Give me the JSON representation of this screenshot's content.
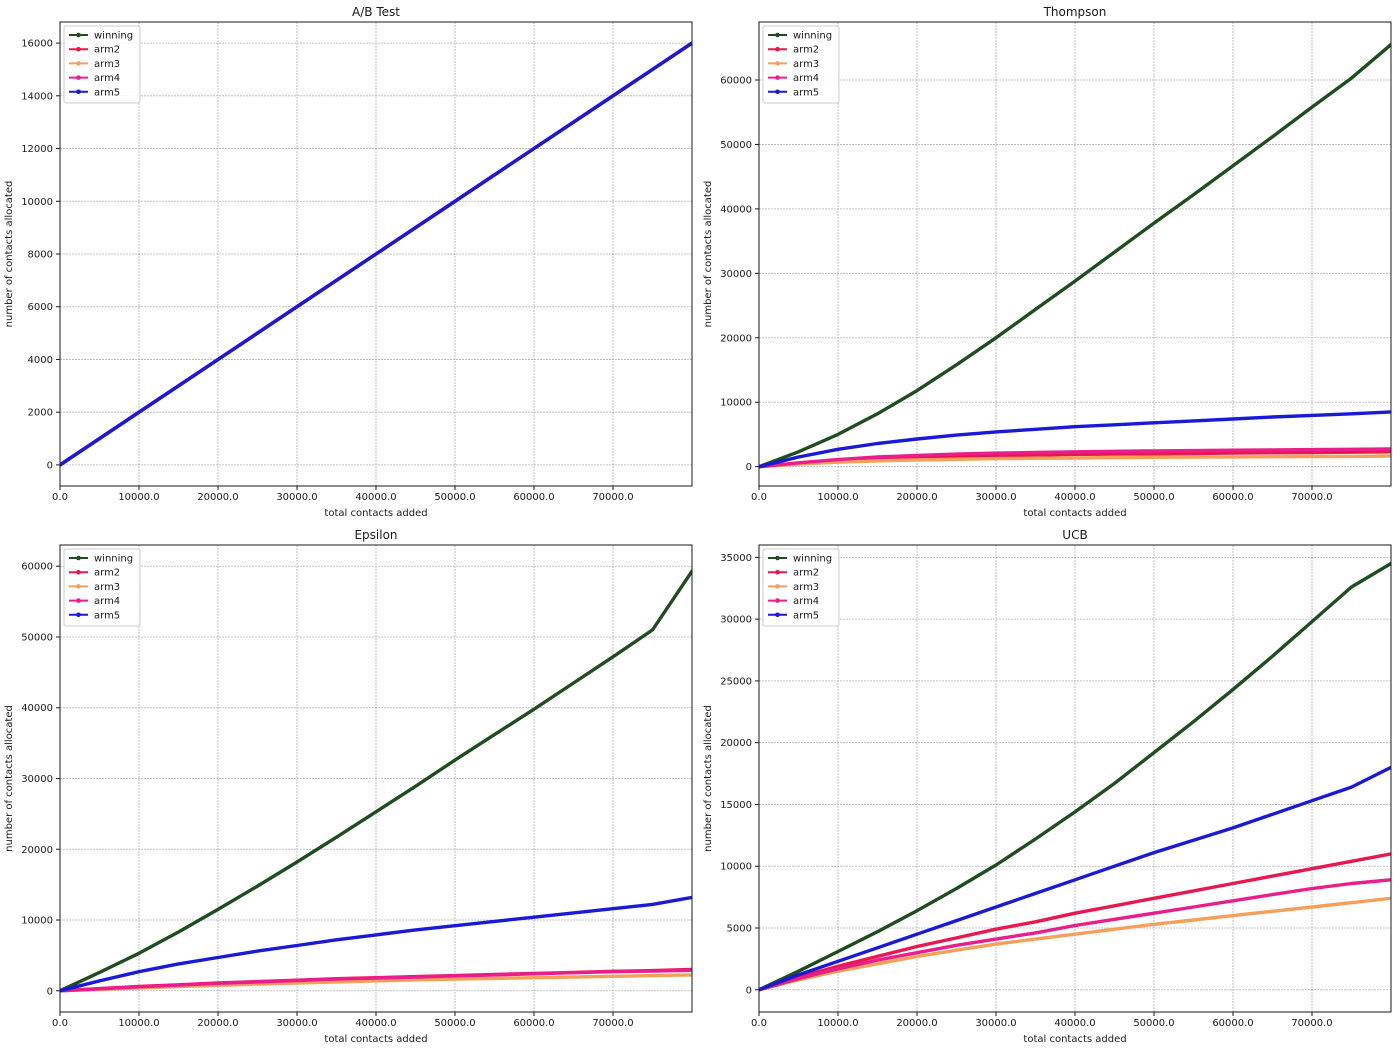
{
  "chart_data": [
    {
      "type": "line",
      "title": "A/B Test",
      "xlabel": "total contacts added",
      "ylabel": "number of contacts allocated",
      "xlim": [
        0,
        80000
      ],
      "ylim": [
        -800,
        16800
      ],
      "xticks": [
        0,
        10000,
        20000,
        30000,
        40000,
        50000,
        60000,
        70000
      ],
      "xtick_labels": [
        "0.0",
        "10000.0",
        "20000.0",
        "30000.0",
        "40000.0",
        "50000.0",
        "60000.0",
        "70000.0"
      ],
      "yticks": [
        0,
        2000,
        4000,
        6000,
        8000,
        10000,
        12000,
        14000,
        16000
      ],
      "ytick_labels": [
        "0",
        "2000",
        "4000",
        "6000",
        "8000",
        "10000",
        "12000",
        "14000",
        "16000"
      ],
      "grid": true,
      "legend_position": "upper-left",
      "x": [
        0,
        10000,
        20000,
        30000,
        40000,
        50000,
        60000,
        70000,
        80000
      ],
      "series": [
        {
          "name": "winning",
          "color": "#1f4d1f",
          "values": [
            0,
            2000,
            4000,
            6000,
            8000,
            10000,
            12000,
            14000,
            16000
          ]
        },
        {
          "name": "arm2",
          "color": "#e8174f",
          "values": [
            0,
            2000,
            4000,
            6000,
            8000,
            10000,
            12000,
            14000,
            16000
          ]
        },
        {
          "name": "arm3",
          "color": "#f5a05a",
          "values": [
            0,
            2000,
            4000,
            6000,
            8000,
            10000,
            12000,
            14000,
            16000
          ]
        },
        {
          "name": "arm4",
          "color": "#e91e8c",
          "values": [
            0,
            2000,
            4000,
            6000,
            8000,
            10000,
            12000,
            14000,
            16000
          ]
        },
        {
          "name": "arm5",
          "color": "#1a1ad6",
          "values": [
            0,
            2000,
            4000,
            6000,
            8000,
            10000,
            12000,
            14000,
            16000
          ]
        }
      ]
    },
    {
      "type": "line",
      "title": "Thompson",
      "xlabel": "total contacts added",
      "ylabel": "number of contacts allocated",
      "xlim": [
        0,
        80000
      ],
      "ylim": [
        -3000,
        69000
      ],
      "xticks": [
        0,
        10000,
        20000,
        30000,
        40000,
        50000,
        60000,
        70000
      ],
      "xtick_labels": [
        "0.0",
        "10000.0",
        "20000.0",
        "30000.0",
        "40000.0",
        "50000.0",
        "60000.0",
        "70000.0"
      ],
      "yticks": [
        0,
        10000,
        20000,
        30000,
        40000,
        50000,
        60000
      ],
      "ytick_labels": [
        "0",
        "10000",
        "20000",
        "30000",
        "40000",
        "50000",
        "60000"
      ],
      "grid": true,
      "legend_position": "upper-left",
      "x": [
        0,
        5000,
        10000,
        15000,
        20000,
        25000,
        30000,
        35000,
        40000,
        45000,
        50000,
        55000,
        60000,
        65000,
        70000,
        75000,
        80000
      ],
      "series": [
        {
          "name": "winning",
          "color": "#1f4d1f",
          "values": [
            0,
            2300,
            5000,
            8200,
            11800,
            15800,
            20000,
            24400,
            28800,
            33300,
            37800,
            42200,
            46700,
            51200,
            55800,
            60300,
            65500
          ]
        },
        {
          "name": "arm2",
          "color": "#e8174f",
          "values": [
            0,
            500,
            900,
            1200,
            1400,
            1600,
            1700,
            1800,
            1900,
            1950,
            2000,
            2050,
            2100,
            2150,
            2200,
            2250,
            2300
          ]
        },
        {
          "name": "arm3",
          "color": "#f5a05a",
          "values": [
            0,
            400,
            700,
            900,
            1050,
            1150,
            1250,
            1300,
            1350,
            1400,
            1450,
            1500,
            1520,
            1550,
            1580,
            1600,
            1650
          ]
        },
        {
          "name": "arm4",
          "color": "#e91e8c",
          "values": [
            0,
            600,
            1100,
            1500,
            1750,
            1950,
            2100,
            2200,
            2300,
            2380,
            2450,
            2500,
            2550,
            2600,
            2650,
            2700,
            2750
          ]
        },
        {
          "name": "arm5",
          "color": "#1a1ad6",
          "values": [
            0,
            1500,
            2700,
            3600,
            4300,
            4900,
            5400,
            5800,
            6200,
            6500,
            6800,
            7100,
            7400,
            7700,
            7950,
            8200,
            8500
          ]
        }
      ]
    },
    {
      "type": "line",
      "title": "Epsilon",
      "xlabel": "total contacts added",
      "ylabel": "number of contacts allocated",
      "xlim": [
        0,
        80000
      ],
      "ylim": [
        -3000,
        63000
      ],
      "xticks": [
        0,
        10000,
        20000,
        30000,
        40000,
        50000,
        60000,
        70000
      ],
      "xtick_labels": [
        "0.0",
        "10000.0",
        "20000.0",
        "30000.0",
        "40000.0",
        "50000.0",
        "60000.0",
        "70000.0"
      ],
      "yticks": [
        0,
        10000,
        20000,
        30000,
        40000,
        50000,
        60000
      ],
      "ytick_labels": [
        "0",
        "10000",
        "20000",
        "30000",
        "40000",
        "50000",
        "60000"
      ],
      "grid": true,
      "legend_position": "upper-left",
      "x": [
        0,
        5000,
        10000,
        15000,
        20000,
        25000,
        30000,
        35000,
        40000,
        45000,
        50000,
        55000,
        60000,
        65000,
        70000,
        75000,
        80000
      ],
      "series": [
        {
          "name": "winning",
          "color": "#1f4d1f",
          "values": [
            0,
            2600,
            5300,
            8300,
            11500,
            14800,
            18200,
            21700,
            25300,
            28900,
            32600,
            36200,
            39800,
            43500,
            47200,
            51000,
            59300
          ]
        },
        {
          "name": "arm2",
          "color": "#e8174f",
          "values": [
            0,
            300,
            600,
            850,
            1100,
            1300,
            1500,
            1700,
            1850,
            2000,
            2150,
            2300,
            2450,
            2600,
            2750,
            2850,
            3000
          ]
        },
        {
          "name": "arm3",
          "color": "#f5a05a",
          "values": [
            0,
            200,
            400,
            600,
            780,
            950,
            1100,
            1250,
            1400,
            1530,
            1650,
            1750,
            1850,
            1950,
            2050,
            2150,
            2250
          ]
        },
        {
          "name": "arm4",
          "color": "#e91e8c",
          "values": [
            0,
            280,
            560,
            800,
            1050,
            1250,
            1450,
            1650,
            1800,
            1950,
            2100,
            2250,
            2400,
            2550,
            2700,
            2800,
            2900
          ]
        },
        {
          "name": "arm5",
          "color": "#1a1ad6",
          "values": [
            0,
            1400,
            2700,
            3800,
            4700,
            5600,
            6400,
            7200,
            7900,
            8600,
            9200,
            9800,
            10400,
            11000,
            11600,
            12200,
            13200
          ]
        }
      ]
    },
    {
      "type": "line",
      "title": "UCB",
      "xlabel": "total contacts added",
      "ylabel": "number of contacts allocated",
      "xlim": [
        0,
        80000
      ],
      "ylim": [
        -1800,
        36000
      ],
      "xticks": [
        0,
        10000,
        20000,
        30000,
        40000,
        50000,
        60000,
        70000
      ],
      "xtick_labels": [
        "0.0",
        "10000.0",
        "20000.0",
        "30000.0",
        "40000.0",
        "50000.0",
        "60000.0",
        "70000.0"
      ],
      "yticks": [
        0,
        5000,
        10000,
        15000,
        20000,
        25000,
        30000,
        35000
      ],
      "ytick_labels": [
        "0",
        "5000",
        "10000",
        "15000",
        "20000",
        "25000",
        "30000",
        "35000"
      ],
      "grid": true,
      "legend_position": "upper-left",
      "x": [
        0,
        5000,
        10000,
        15000,
        20000,
        25000,
        30000,
        35000,
        40000,
        45000,
        50000,
        55000,
        60000,
        65000,
        70000,
        75000,
        80000
      ],
      "series": [
        {
          "name": "winning",
          "color": "#1f4d1f",
          "values": [
            0,
            1500,
            3100,
            4700,
            6400,
            8200,
            10100,
            12200,
            14400,
            16700,
            19200,
            21700,
            24300,
            27000,
            29800,
            32600,
            34500
          ]
        },
        {
          "name": "arm2",
          "color": "#e8174f",
          "values": [
            0,
            1000,
            1900,
            2700,
            3500,
            4200,
            4900,
            5500,
            6200,
            6800,
            7400,
            8000,
            8600,
            9200,
            9800,
            10400,
            11000
          ]
        },
        {
          "name": "arm3",
          "color": "#f5a05a",
          "values": [
            0,
            800,
            1500,
            2100,
            2700,
            3200,
            3700,
            4100,
            4500,
            4900,
            5300,
            5650,
            6000,
            6350,
            6700,
            7050,
            7400
          ]
        },
        {
          "name": "arm4",
          "color": "#e91e8c",
          "values": [
            0,
            900,
            1700,
            2400,
            3000,
            3600,
            4100,
            4600,
            5200,
            5700,
            6200,
            6700,
            7200,
            7700,
            8200,
            8600,
            8900
          ]
        },
        {
          "name": "arm5",
          "color": "#1a1ad6",
          "values": [
            0,
            1200,
            2300,
            3400,
            4500,
            5600,
            6700,
            7800,
            8900,
            10000,
            11100,
            12100,
            13100,
            14200,
            15300,
            16400,
            18000
          ]
        }
      ]
    }
  ]
}
